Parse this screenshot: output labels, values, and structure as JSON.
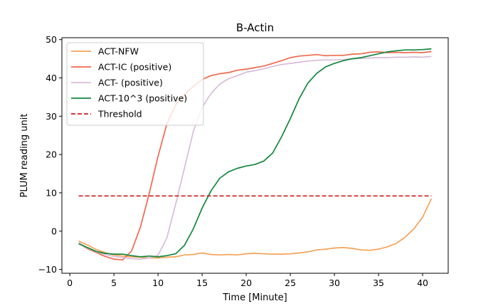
{
  "chart_data": {
    "type": "line",
    "title": "B-Actin",
    "xlabel": "Time [Minute]",
    "ylabel": "PLUM reading unit",
    "xlim": [
      -0.9,
      42.9
    ],
    "ylim": [
      -11,
      50.5
    ],
    "xticks": [
      0,
      5,
      10,
      15,
      20,
      25,
      30,
      35,
      40
    ],
    "yticks": [
      -10,
      0,
      10,
      20,
      30,
      40,
      50
    ],
    "grid": false,
    "legend_position": "top-left",
    "x": [
      1,
      2,
      3,
      4,
      5,
      6,
      7,
      8,
      9,
      10,
      11,
      12,
      13,
      14,
      15,
      16,
      17,
      18,
      19,
      20,
      21,
      22,
      23,
      24,
      25,
      26,
      27,
      28,
      29,
      30,
      31,
      32,
      33,
      34,
      35,
      36,
      37,
      38,
      39,
      40,
      41
    ],
    "series": [
      {
        "name": "ACT-NFW",
        "color": "#f4a35a",
        "dash": "solid",
        "values": [
          -2.6,
          -3.6,
          -4.8,
          -5.6,
          -6.2,
          -6.5,
          -6.7,
          -6.8,
          -7.0,
          -7.0,
          -6.8,
          -6.7,
          -6.2,
          -6.1,
          -5.7,
          -6.1,
          -6.2,
          -6.1,
          -6.2,
          -5.9,
          -5.8,
          -5.9,
          -6.0,
          -6.0,
          -5.9,
          -5.7,
          -5.4,
          -4.9,
          -4.7,
          -4.4,
          -4.3,
          -4.5,
          -4.9,
          -5.0,
          -4.7,
          -4.1,
          -3.2,
          -1.6,
          0.6,
          3.6,
          8.5
        ]
      },
      {
        "name": "ACT-IC (positive)",
        "color": "#ee6a4e",
        "dash": "solid",
        "values": [
          -3.1,
          -4.6,
          -5.6,
          -6.6,
          -7.3,
          -7.5,
          -5.2,
          1.0,
          9.8,
          19.5,
          28.0,
          32.9,
          35.6,
          37.8,
          39.6,
          40.6,
          41.1,
          41.4,
          42.0,
          42.3,
          42.7,
          43.1,
          43.8,
          44.5,
          45.3,
          45.7,
          45.9,
          46.1,
          45.8,
          45.9,
          45.9,
          46.2,
          46.3,
          46.7,
          46.8,
          46.6,
          46.7,
          46.6,
          46.7,
          46.6,
          46.9
        ]
      },
      {
        "name": "ACT- (positive)",
        "color": "#d9bcd9",
        "dash": "solid",
        "values": [
          -3.0,
          -4.4,
          -5.4,
          -6.1,
          -6.6,
          -6.9,
          -7.2,
          -7.3,
          -7.0,
          -6.3,
          -1.8,
          7.0,
          16.5,
          26.0,
          32.3,
          35.9,
          38.4,
          39.8,
          40.6,
          41.5,
          41.9,
          42.4,
          43.0,
          43.5,
          43.8,
          44.1,
          44.4,
          44.6,
          44.7,
          44.7,
          44.8,
          45.0,
          45.1,
          45.2,
          45.3,
          45.3,
          45.4,
          45.4,
          45.5,
          45.4,
          45.6
        ]
      },
      {
        "name": "ACT-10^3 (positive)",
        "color": "#13873d",
        "dash": "solid",
        "values": [
          -3.3,
          -4.3,
          -5.3,
          -5.8,
          -6.0,
          -6.0,
          -6.4,
          -6.7,
          -6.5,
          -6.7,
          -6.4,
          -5.9,
          -3.7,
          0.6,
          6.0,
          10.5,
          13.8,
          15.5,
          16.4,
          17.0,
          17.4,
          18.3,
          20.4,
          24.6,
          29.4,
          34.6,
          38.7,
          41.2,
          42.9,
          43.8,
          44.5,
          45.0,
          45.3,
          45.8,
          46.3,
          46.8,
          47.1,
          47.3,
          47.3,
          47.4,
          47.6
        ]
      },
      {
        "name": "Threshold",
        "color": "#cc1f1f",
        "dash": "dashed",
        "values": [
          9.2,
          9.2,
          9.2,
          9.2,
          9.2,
          9.2,
          9.2,
          9.2,
          9.2,
          9.2,
          9.2,
          9.2,
          9.2,
          9.2,
          9.2,
          9.2,
          9.2,
          9.2,
          9.2,
          9.2,
          9.2,
          9.2,
          9.2,
          9.2,
          9.2,
          9.2,
          9.2,
          9.2,
          9.2,
          9.2,
          9.2,
          9.2,
          9.2,
          9.2,
          9.2,
          9.2,
          9.2,
          9.2,
          9.2,
          9.2,
          9.2
        ]
      }
    ]
  }
}
